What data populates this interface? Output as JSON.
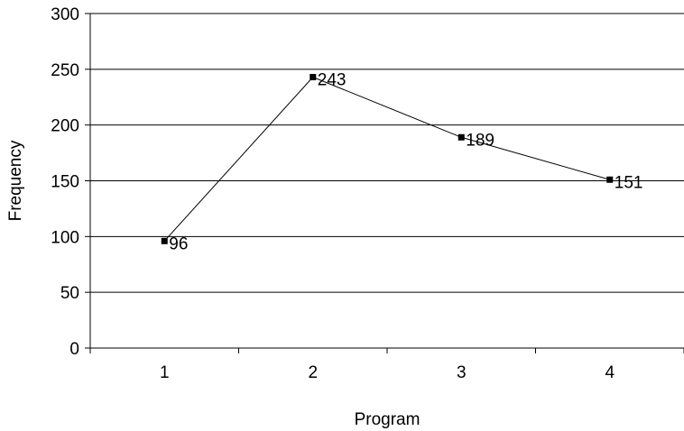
{
  "chart_data": {
    "type": "line",
    "title": "",
    "xlabel": "Program",
    "ylabel": "Frequency",
    "categories": [
      "1",
      "2",
      "3",
      "4"
    ],
    "series": [
      {
        "values": [
          96,
          243,
          189,
          151
        ]
      }
    ],
    "data_labels": [
      "96",
      "243",
      "189",
      "151"
    ],
    "ylim": [
      0,
      300
    ],
    "yticks": [
      "0",
      "50",
      "100",
      "150",
      "200",
      "250",
      "300"
    ],
    "grid": "horizontal",
    "legend": "none",
    "colors": {
      "line": "#000000",
      "marker": "#000000",
      "grid": "#000000",
      "background": "#ffffff"
    }
  }
}
